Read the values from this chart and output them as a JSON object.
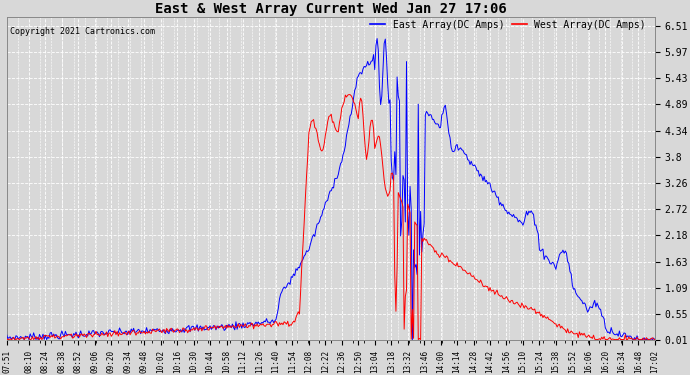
{
  "title": "East & West Array Current Wed Jan 27 17:06",
  "copyright": "Copyright 2021 Cartronics.com",
  "legend_east": "East Array(DC Amps)",
  "legend_west": "West Array(DC Amps)",
  "east_color": "blue",
  "west_color": "red",
  "yticks": [
    0.01,
    0.55,
    1.09,
    1.63,
    2.18,
    2.72,
    3.26,
    3.8,
    4.34,
    4.89,
    5.43,
    5.97,
    6.51
  ],
  "ylim": [
    0.0,
    6.7
  ],
  "background_color": "#d8d8d8",
  "grid_color": "#ffffff",
  "xtick_labels": [
    "07:51",
    "08:10",
    "08:24",
    "08:38",
    "08:52",
    "09:06",
    "09:20",
    "09:34",
    "09:48",
    "10:02",
    "10:16",
    "10:30",
    "10:44",
    "10:58",
    "11:12",
    "11:26",
    "11:40",
    "11:54",
    "12:08",
    "12:22",
    "12:36",
    "12:50",
    "13:04",
    "13:18",
    "13:32",
    "13:46",
    "14:00",
    "14:14",
    "14:28",
    "14:42",
    "14:56",
    "15:10",
    "15:24",
    "15:38",
    "15:52",
    "16:06",
    "16:20",
    "16:34",
    "16:48",
    "17:02"
  ]
}
